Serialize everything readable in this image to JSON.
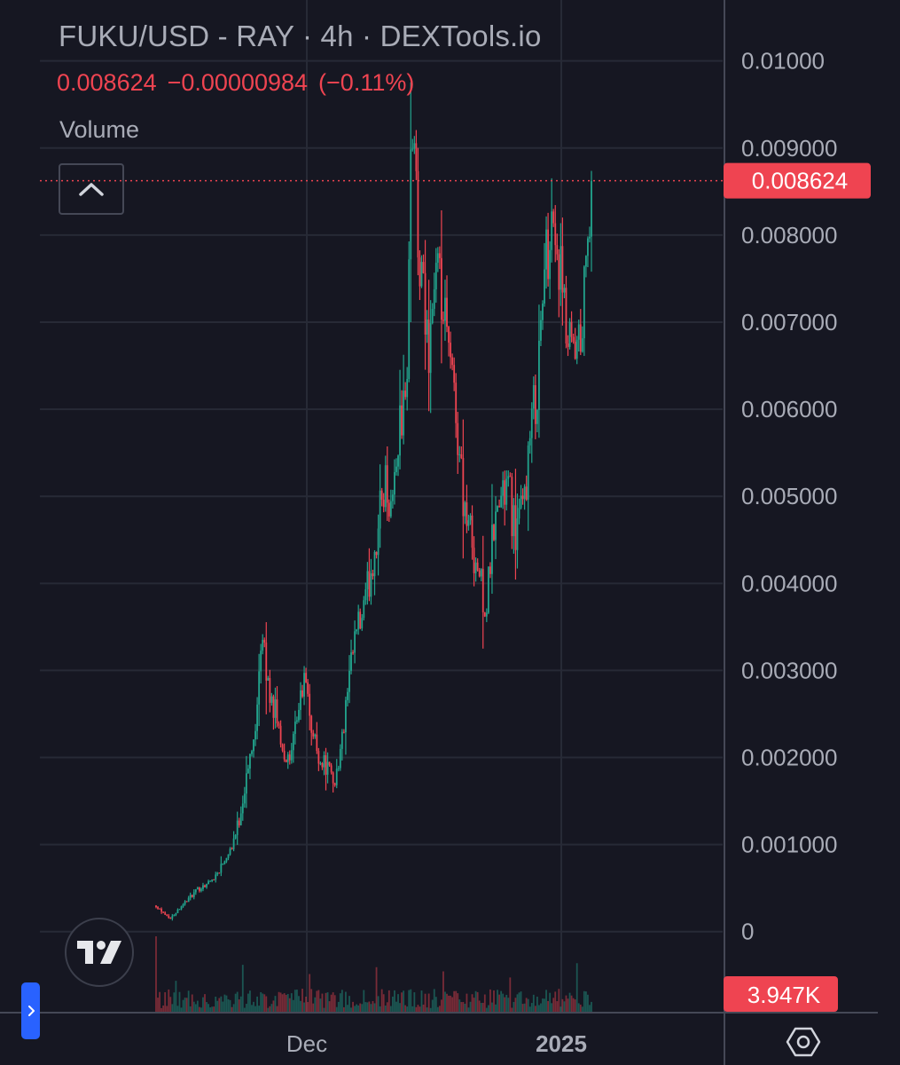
{
  "header": {
    "title": "FUKU/USD - RAY · 4h · DEXTools.io",
    "last_price": "0.008624",
    "change": "−0.00000984",
    "change_pct": "(−0.11%)",
    "volume_label": "Volume"
  },
  "colors": {
    "background": "#161722",
    "up": "#22a48d",
    "down": "#ef4451",
    "grid": "#272a36",
    "text": "#a9acb7",
    "accent": "#2962ff"
  },
  "icons": {
    "collapse": "chevron-up-icon",
    "logo": "tradingview-logo-icon",
    "side": "chevron-right-icon",
    "settings": "gear-icon"
  },
  "chart_data": {
    "type": "candlestick",
    "title": "FUKU/USD - RAY · 4h · DEXTools.io",
    "interval": "4h",
    "y_tick_labels": [
      "0.01000",
      "0.009000",
      "0.008000",
      "0.007000",
      "0.006000",
      "0.005000",
      "0.004000",
      "0.003000",
      "0.002000",
      "0.001000",
      "0"
    ],
    "y_ticks": [
      0.01,
      0.009,
      0.008,
      0.007,
      0.006,
      0.005,
      0.004,
      0.003,
      0.002,
      0.001,
      0
    ],
    "ylim": [
      -0.00092,
      0.0107
    ],
    "y_axis_side": "right",
    "x_tick_labels": [
      "Dec",
      "2025"
    ],
    "last_price_label": "0.008624",
    "last_price": 0.008624,
    "volume_label": "3.947K",
    "grid": true,
    "anchors": [
      [
        0,
        0.0003
      ],
      [
        2,
        0.00022
      ],
      [
        4,
        0.00015
      ],
      [
        7,
        0.0003
      ],
      [
        10,
        0.00042
      ],
      [
        12,
        0.0005
      ],
      [
        15,
        0.00058
      ],
      [
        17,
        0.00068
      ],
      [
        19,
        0.00085
      ],
      [
        21,
        0.001
      ],
      [
        23,
        0.0013
      ],
      [
        25,
        0.0018
      ],
      [
        27,
        0.0022
      ],
      [
        29,
        0.0034
      ],
      [
        31,
        0.0028
      ],
      [
        33,
        0.0025
      ],
      [
        35,
        0.0021
      ],
      [
        37,
        0.0019
      ],
      [
        39,
        0.0025
      ],
      [
        41,
        0.0029
      ],
      [
        43,
        0.0023
      ],
      [
        45,
        0.002
      ],
      [
        47,
        0.0019
      ],
      [
        49,
        0.0017
      ],
      [
        51,
        0.0021
      ],
      [
        53,
        0.0028
      ],
      [
        55,
        0.0034
      ],
      [
        57,
        0.0036
      ],
      [
        59,
        0.0041
      ],
      [
        61,
        0.0046
      ],
      [
        63,
        0.0052
      ],
      [
        65,
        0.0049
      ],
      [
        67,
        0.0058
      ],
      [
        69,
        0.0061
      ],
      [
        70,
        0.0085
      ],
      [
        71,
        0.0094
      ],
      [
        72,
        0.0078
      ],
      [
        73,
        0.0074
      ],
      [
        75,
        0.0067
      ],
      [
        77,
        0.0076
      ],
      [
        79,
        0.0071
      ],
      [
        81,
        0.0065
      ],
      [
        83,
        0.0058
      ],
      [
        85,
        0.0049
      ],
      [
        87,
        0.0045
      ],
      [
        89,
        0.0041
      ],
      [
        91,
        0.0037
      ],
      [
        93,
        0.0046
      ],
      [
        95,
        0.005
      ],
      [
        97,
        0.0051
      ],
      [
        99,
        0.0046
      ],
      [
        101,
        0.0048
      ],
      [
        103,
        0.0056
      ],
      [
        105,
        0.0063
      ],
      [
        107,
        0.0075
      ],
      [
        109,
        0.0083
      ],
      [
        111,
        0.0077
      ],
      [
        113,
        0.0068
      ],
      [
        115,
        0.0065
      ],
      [
        117,
        0.0067
      ],
      [
        119,
        0.0079
      ],
      [
        120,
        0.0086
      ]
    ]
  }
}
